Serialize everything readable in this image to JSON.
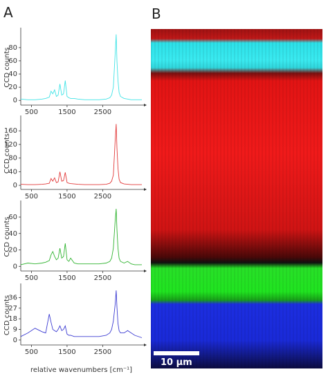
{
  "panel_labels": {
    "a": "A",
    "b": "B"
  },
  "image": {
    "scale_bar": "10 µm"
  },
  "chart_data": [
    {
      "type": "line",
      "y_label": "CCD counts",
      "color": "#3fe3e6",
      "x": [
        200,
        400,
        600,
        800,
        900,
        1000,
        1050,
        1100,
        1150,
        1200,
        1250,
        1300,
        1350,
        1400,
        1450,
        1500,
        1550,
        1600,
        1700,
        1800,
        2000,
        2200,
        2400,
        2600,
        2700,
        2750,
        2800,
        2850,
        2880,
        2900,
        2930,
        2960,
        3000,
        3100,
        3200,
        3300,
        3400,
        3600
      ],
      "values": [
        2,
        1,
        1,
        2,
        3,
        5,
        14,
        10,
        16,
        6,
        8,
        25,
        8,
        10,
        30,
        6,
        4,
        3,
        3,
        2,
        1,
        1,
        1,
        2,
        4,
        8,
        20,
        70,
        100,
        60,
        30,
        12,
        6,
        3,
        2,
        1,
        1,
        1
      ],
      "xlim": [
        200,
        3600
      ],
      "xticks": [
        500,
        1500,
        2500
      ],
      "ylim": [
        -5,
        105
      ],
      "yticks": [
        0,
        20,
        40,
        60,
        80
      ]
    },
    {
      "type": "line",
      "y_label": "CCD counts",
      "color": "#e23a3a",
      "x": [
        200,
        400,
        600,
        800,
        900,
        1000,
        1050,
        1100,
        1150,
        1200,
        1250,
        1300,
        1350,
        1400,
        1450,
        1500,
        1550,
        1600,
        1700,
        1800,
        2000,
        2200,
        2400,
        2600,
        2700,
        2750,
        2800,
        2850,
        2880,
        2900,
        2930,
        2960,
        3000,
        3100,
        3200,
        3300,
        3400,
        3600
      ],
      "values": [
        3,
        2,
        2,
        3,
        4,
        6,
        20,
        12,
        22,
        8,
        10,
        40,
        12,
        14,
        38,
        8,
        6,
        5,
        4,
        3,
        2,
        2,
        2,
        3,
        6,
        12,
        30,
        130,
        180,
        110,
        50,
        18,
        8,
        4,
        3,
        2,
        2,
        2
      ],
      "xlim": [
        200,
        3600
      ],
      "xticks": [
        500,
        1500,
        2500
      ],
      "ylim": [
        -8,
        195
      ],
      "yticks": [
        0,
        40,
        80,
        120,
        160
      ]
    },
    {
      "type": "line",
      "y_label": "CCD counts",
      "color": "#2fb32f",
      "x": [
        200,
        400,
        600,
        800,
        900,
        1000,
        1050,
        1100,
        1150,
        1200,
        1250,
        1300,
        1350,
        1400,
        1450,
        1500,
        1550,
        1600,
        1700,
        1800,
        2000,
        2200,
        2400,
        2600,
        2700,
        2750,
        2800,
        2850,
        2880,
        2900,
        2930,
        2960,
        3000,
        3100,
        3200,
        3300,
        3400,
        3600
      ],
      "values": [
        2,
        4,
        3,
        4,
        5,
        7,
        14,
        18,
        12,
        8,
        10,
        22,
        10,
        12,
        28,
        8,
        6,
        10,
        4,
        3,
        3,
        3,
        3,
        4,
        6,
        10,
        22,
        55,
        70,
        45,
        22,
        10,
        6,
        4,
        6,
        3,
        2,
        2
      ],
      "xlim": [
        200,
        3600
      ],
      "xticks": [
        500,
        1500,
        2500
      ],
      "ylim": [
        -4,
        76
      ],
      "yticks": [
        0,
        20,
        40,
        60
      ]
    },
    {
      "type": "line",
      "y_label": "CCD counts",
      "color": "#3c3cd2",
      "x_label": "relative wavenumbers [cm⁻¹]",
      "x": [
        200,
        400,
        600,
        800,
        900,
        1000,
        1050,
        1100,
        1150,
        1200,
        1250,
        1300,
        1350,
        1400,
        1450,
        1500,
        1550,
        1600,
        1700,
        1800,
        2000,
        2200,
        2400,
        2600,
        2700,
        2750,
        2800,
        2850,
        2880,
        2900,
        2930,
        2960,
        3000,
        3100,
        3200,
        3300,
        3400,
        3600
      ],
      "values": [
        3,
        6,
        10,
        7,
        6,
        22,
        15,
        9,
        8,
        7,
        9,
        12,
        8,
        9,
        12,
        5,
        4,
        4,
        3,
        3,
        3,
        3,
        3,
        4,
        6,
        9,
        16,
        30,
        42,
        28,
        14,
        8,
        6,
        6,
        8,
        6,
        4,
        2
      ],
      "xlim": [
        200,
        3600
      ],
      "xticks": [
        500,
        1500,
        2500
      ],
      "ylim": [
        -3,
        45
      ],
      "yticks": [
        0,
        9,
        18,
        27,
        36
      ]
    }
  ]
}
